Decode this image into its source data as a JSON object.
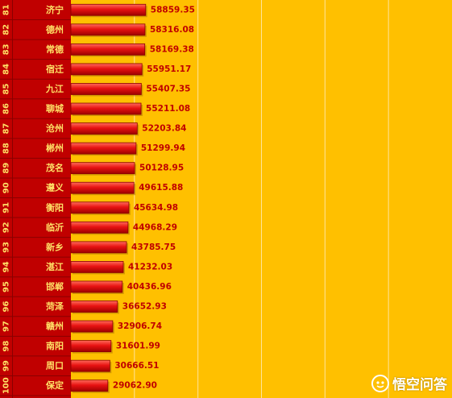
{
  "chart_data": {
    "type": "bar",
    "orientation": "horizontal",
    "ranks": [
      "81",
      "82",
      "83",
      "84",
      "85",
      "86",
      "87",
      "88",
      "89",
      "90",
      "91",
      "92",
      "93",
      "94",
      "95",
      "96",
      "97",
      "98",
      "99",
      "100"
    ],
    "categories": [
      "济宁",
      "德州",
      "常德",
      "宿迁",
      "九江",
      "聊城",
      "沧州",
      "郴州",
      "茂名",
      "遵义",
      "衡阳",
      "临沂",
      "新乡",
      "湛江",
      "邯郸",
      "菏泽",
      "赣州",
      "南阳",
      "周口",
      "保定"
    ],
    "values": [
      58859.35,
      58316.08,
      58169.38,
      55951.17,
      55407.35,
      55211.08,
      52203.84,
      51299.94,
      50128.95,
      49615.88,
      45634.98,
      44968.29,
      43785.75,
      41232.03,
      40436.96,
      36652.93,
      32906.74,
      31601.99,
      30666.51,
      29062.9
    ],
    "value_labels": [
      "58859.35",
      "58316.08",
      "58169.38",
      "55951.17",
      "55407.35",
      "55211.08",
      "52203.84",
      "51299.94",
      "50128.95",
      "49615.88",
      "45634.98",
      "44968.29",
      "43785.75",
      "41232.03",
      "40436.96",
      "36652.93",
      "32906.74",
      "31601.99",
      "30666.51",
      "29062.90"
    ],
    "xlim": [
      0,
      300000
    ],
    "grid": true,
    "colors": {
      "background": "#ffc000",
      "bar": "#e01010",
      "bar_dark": "#a80000",
      "bar_light": "#ff5a4a",
      "label_column": "#c00000",
      "label_text": "#ffe066",
      "value_text": "#c00000",
      "gridline": "#ffe59a"
    }
  },
  "watermark": {
    "text": "悟空问答",
    "icon": "wukong-logo-icon"
  }
}
